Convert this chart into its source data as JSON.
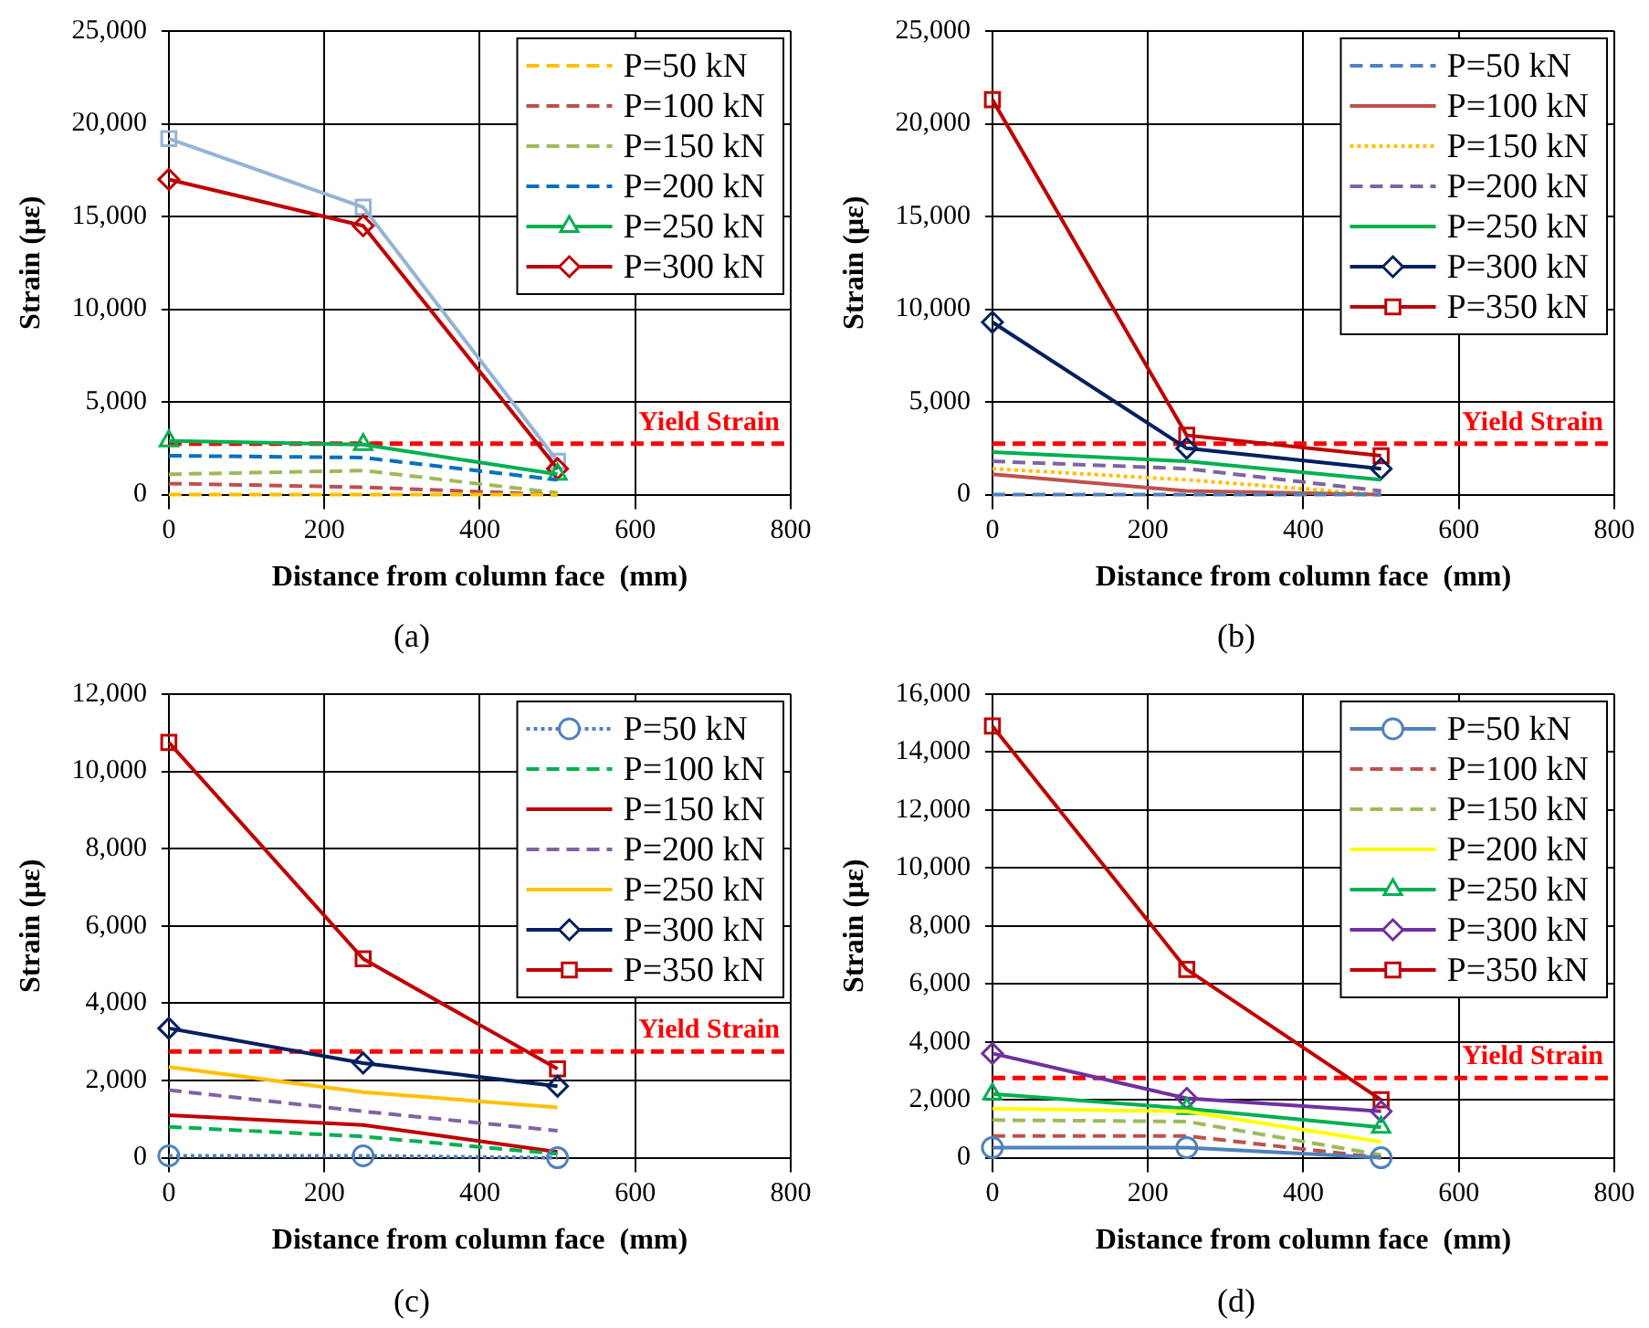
{
  "chart_data": [
    {
      "type": "line",
      "xlabel": "Distance from column face  (mm)",
      "ylabel": "Strain (με)",
      "x": [
        0,
        250,
        500
      ],
      "xlim": [
        0,
        800
      ],
      "xticks": [
        0,
        200,
        400,
        600,
        800
      ],
      "ylim": [
        0,
        25000
      ],
      "yticks": [
        {
          "value": 0,
          "label": "0"
        },
        {
          "value": 5000,
          "label": "5,000"
        },
        {
          "value": 10000,
          "label": "10,000"
        },
        {
          "value": 15000,
          "label": "15,000"
        },
        {
          "value": 20000,
          "label": "20,000"
        },
        {
          "value": 25000,
          "label": "25,000"
        }
      ],
      "grid": true,
      "legend": "top right",
      "series": [
        {
          "name": "P=50 kN",
          "color": "#ffc000",
          "values": [
            0,
            0,
            0
          ],
          "line_style": "dashed",
          "marker": "none"
        },
        {
          "name": "P=100 kN",
          "color": "#c0504d",
          "values": [
            600,
            400,
            0
          ],
          "line_style": "dashed",
          "marker": "none"
        },
        {
          "name": "P=150 kN",
          "color": "#9bbb59",
          "values": [
            1100,
            1300,
            100
          ],
          "line_style": "dashed",
          "marker": "none"
        },
        {
          "name": "P=200 kN",
          "color": "#0070c0",
          "values": [
            2100,
            2000,
            800
          ],
          "line_style": "dashed",
          "marker": "none"
        },
        {
          "name": "P=250 kN",
          "color": "#00b050",
          "values": [
            2900,
            2700,
            1100
          ],
          "line_style": "solid",
          "marker": "triangle"
        },
        {
          "name": "P=300 kN",
          "color": "#c00000",
          "values": [
            17000,
            14500,
            1400
          ],
          "line_style": "solid",
          "marker": "diamond"
        },
        {
          "color": "#95b3d7",
          "values": [
            19200,
            15500,
            1800
          ],
          "line_style": "solid",
          "marker": "square"
        }
      ],
      "ref_lines": [
        {
          "axis": "y",
          "value": 2750,
          "label": "Yield Strain",
          "color": "#ff0000",
          "line_style": "dashed"
        }
      ],
      "annotations": [
        "(a)"
      ]
    },
    {
      "type": "line",
      "xlabel": "Distance from column face  (mm)",
      "ylabel": "Strain (με)",
      "x": [
        0,
        250,
        500
      ],
      "xlim": [
        0,
        800
      ],
      "xticks": [
        0,
        200,
        400,
        600,
        800
      ],
      "ylim": [
        0,
        25000
      ],
      "yticks": [
        {
          "value": 0,
          "label": "0"
        },
        {
          "value": 5000,
          "label": "5,000"
        },
        {
          "value": 10000,
          "label": "10,000"
        },
        {
          "value": 15000,
          "label": "15,000"
        },
        {
          "value": 20000,
          "label": "20,000"
        },
        {
          "value": 25000,
          "label": "25,000"
        }
      ],
      "grid": true,
      "legend": "top right",
      "series": [
        {
          "name": "P=50 kN",
          "color": "#4f81bd",
          "values": [
            0,
            0,
            0
          ],
          "line_style": "dashed",
          "marker": "none"
        },
        {
          "name": "P=100 kN",
          "color": "#c0504d",
          "values": [
            1100,
            200,
            0
          ],
          "line_style": "solid",
          "marker": "none"
        },
        {
          "name": "P=150 kN",
          "color": "#ffc000",
          "values": [
            1400,
            800,
            0
          ],
          "line_style": "dotted",
          "marker": "none"
        },
        {
          "name": "P=200 kN",
          "color": "#8064a2",
          "values": [
            1800,
            1400,
            200
          ],
          "line_style": "dashed",
          "marker": "none"
        },
        {
          "name": "P=250 kN",
          "color": "#00b050",
          "values": [
            2300,
            1800,
            800
          ],
          "line_style": "solid",
          "marker": "none"
        },
        {
          "name": "P=300 kN",
          "color": "#002060",
          "values": [
            9300,
            2500,
            1400
          ],
          "line_style": "solid",
          "marker": "diamond"
        },
        {
          "name": "P=350 kN",
          "color": "#c00000",
          "values": [
            21300,
            3200,
            2100
          ],
          "line_style": "solid",
          "marker": "square"
        }
      ],
      "ref_lines": [
        {
          "axis": "y",
          "value": 2750,
          "label": "Yield Strain",
          "color": "#ff0000",
          "line_style": "dashed"
        }
      ],
      "annotations": [
        "(b)"
      ]
    },
    {
      "type": "line",
      "xlabel": "Distance from column face  (mm)",
      "ylabel": "Strain (με)",
      "x": [
        0,
        250,
        500
      ],
      "xlim": [
        0,
        800
      ],
      "xticks": [
        0,
        200,
        400,
        600,
        800
      ],
      "ylim": [
        0,
        12000
      ],
      "yticks": [
        {
          "value": 0,
          "label": "0"
        },
        {
          "value": 2000,
          "label": "2,000"
        },
        {
          "value": 4000,
          "label": "4,000"
        },
        {
          "value": 6000,
          "label": "6,000"
        },
        {
          "value": 8000,
          "label": "8,000"
        },
        {
          "value": 10000,
          "label": "10,000"
        },
        {
          "value": 12000,
          "label": "12,000"
        }
      ],
      "grid": true,
      "legend": "top right",
      "series": [
        {
          "name": "P=50 kN",
          "color": "#4f81bd",
          "values": [
            50,
            50,
            0
          ],
          "line_style": "dotted",
          "marker": "circle"
        },
        {
          "name": "P=100 kN",
          "color": "#00b050",
          "values": [
            800,
            550,
            100
          ],
          "line_style": "dashed",
          "marker": "none"
        },
        {
          "name": "P=150 kN",
          "color": "#c00000",
          "values": [
            1100,
            850,
            150
          ],
          "line_style": "solid",
          "marker": "none"
        },
        {
          "name": "P=200 kN",
          "color": "#8064a2",
          "values": [
            1750,
            1200,
            700
          ],
          "line_style": "dashed",
          "marker": "none"
        },
        {
          "name": "P=250 kN",
          "color": "#ffc000",
          "values": [
            2350,
            1700,
            1300
          ],
          "line_style": "solid",
          "marker": "none"
        },
        {
          "name": "P=300 kN",
          "color": "#002060",
          "values": [
            3350,
            2450,
            1850
          ],
          "line_style": "solid",
          "marker": "diamond"
        },
        {
          "name": "P=350 kN",
          "color": "#c00000",
          "values": [
            10750,
            5150,
            2300
          ],
          "line_style": "solid",
          "marker": "square"
        }
      ],
      "ref_lines": [
        {
          "axis": "y",
          "value": 2750,
          "label": "Yield Strain",
          "color": "#ff0000",
          "line_style": "dashed"
        }
      ],
      "annotations": [
        "(c)"
      ]
    },
    {
      "type": "line",
      "xlabel": "Distance from column face  (mm)",
      "ylabel": "Strain (με)",
      "x": [
        0,
        250,
        500
      ],
      "xlim": [
        0,
        800
      ],
      "xticks": [
        0,
        200,
        400,
        600,
        800
      ],
      "ylim": [
        0,
        16000
      ],
      "yticks": [
        {
          "value": 0,
          "label": "0"
        },
        {
          "value": 2000,
          "label": "2,000"
        },
        {
          "value": 4000,
          "label": "4,000"
        },
        {
          "value": 6000,
          "label": "6,000"
        },
        {
          "value": 8000,
          "label": "8,000"
        },
        {
          "value": 10000,
          "label": "10,000"
        },
        {
          "value": 12000,
          "label": "12,000"
        },
        {
          "value": 14000,
          "label": "14,000"
        },
        {
          "value": 16000,
          "label": "16,000"
        }
      ],
      "grid": true,
      "legend": "top right",
      "series": [
        {
          "name": "P=50 kN",
          "color": "#4f81bd",
          "values": [
            350,
            350,
            0
          ],
          "line_style": "solid",
          "marker": "circle"
        },
        {
          "name": "P=100 kN",
          "color": "#c0504d",
          "values": [
            750,
            750,
            0
          ],
          "line_style": "dashed",
          "marker": "none"
        },
        {
          "name": "P=150 kN",
          "color": "#9bbb59",
          "values": [
            1300,
            1250,
            100
          ],
          "line_style": "dashed",
          "marker": "none"
        },
        {
          "name": "P=200 kN",
          "color": "#ffff00",
          "values": [
            1700,
            1600,
            550
          ],
          "line_style": "solid",
          "marker": "none"
        },
        {
          "name": "P=250 kN",
          "color": "#00b050",
          "values": [
            2200,
            1700,
            1050
          ],
          "line_style": "solid",
          "marker": "triangle"
        },
        {
          "name": "P=300 kN",
          "color": "#7030a0",
          "values": [
            3600,
            2050,
            1600
          ],
          "line_style": "solid",
          "marker": "diamond"
        },
        {
          "name": "P=350 kN",
          "color": "#c00000",
          "values": [
            14900,
            6500,
            2000
          ],
          "line_style": "solid",
          "marker": "square"
        }
      ],
      "ref_lines": [
        {
          "axis": "y",
          "value": 2750,
          "label": "Yield Strain",
          "color": "#ff0000",
          "line_style": "dashed"
        }
      ],
      "annotations": [
        "(d)"
      ]
    }
  ]
}
